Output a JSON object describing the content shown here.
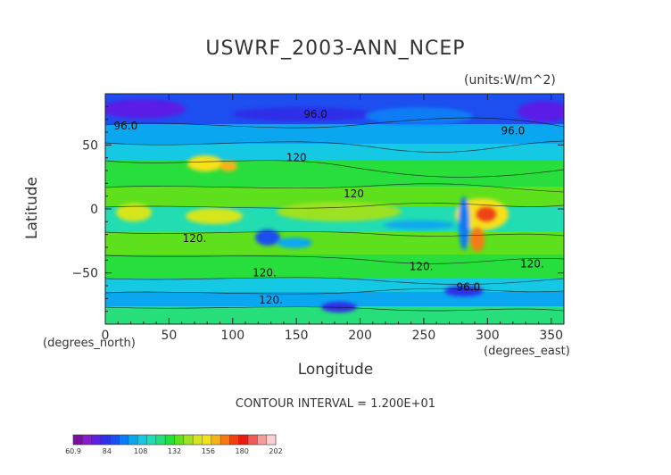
{
  "chart_data": {
    "type": "heatmap",
    "title": "USWRF_2003-ANN_NCEP",
    "units": "(units:W/m^2)",
    "xlabel": "Longitude",
    "ylabel": "Latitude",
    "x_unit_label": "(degrees_north)",
    "x_unit_label_right": "(degrees_east)",
    "xlim": [
      0,
      360
    ],
    "ylim": [
      -90,
      90
    ],
    "x_ticks": [
      0,
      50,
      100,
      150,
      200,
      250,
      300,
      350
    ],
    "y_ticks": [
      -50,
      0,
      50
    ],
    "x_tick_labels": [
      "0",
      "50",
      "100",
      "150",
      "200",
      "250",
      "300",
      "350"
    ],
    "y_tick_labels": [
      "−50",
      "0",
      "50"
    ],
    "contour_interval_text": "CONTOUR INTERVAL = 1.200E+01",
    "contour_labels": [
      {
        "text": "96.0",
        "lon": 165,
        "lat": 74
      },
      {
        "text": "96.0",
        "lon": 16,
        "lat": 65
      },
      {
        "text": "96.0",
        "lon": 320,
        "lat": 61
      },
      {
        "text": "120",
        "lon": 150,
        "lat": 40
      },
      {
        "text": "120",
        "lon": 195,
        "lat": 12
      },
      {
        "text": "120.",
        "lon": 70,
        "lat": -23
      },
      {
        "text": "120.",
        "lon": 125,
        "lat": -50
      },
      {
        "text": "120.",
        "lon": 248,
        "lat": -45
      },
      {
        "text": "120.",
        "lon": 335,
        "lat": -43
      },
      {
        "text": "96.0",
        "lon": 285,
        "lat": -61
      },
      {
        "text": "120.",
        "lon": 130,
        "lat": -71
      }
    ],
    "colorbar": {
      "min": 60.9,
      "max": 202,
      "tick_labels": [
        "60.9",
        "84",
        "108",
        "132",
        "156",
        "180",
        "202"
      ],
      "colors": [
        "#7a0fa0",
        "#8a1ad0",
        "#5a1ee6",
        "#2f2fe8",
        "#1d4ef0",
        "#0a7cf5",
        "#0aa7f0",
        "#15c8e3",
        "#22dcb2",
        "#27df7a",
        "#28de3c",
        "#5ee01c",
        "#9de224",
        "#d6e61e",
        "#f5e11a",
        "#f8b218",
        "#f57a16",
        "#ef4212",
        "#ea1a12",
        "#f25a5a",
        "#f89a9a",
        "#fcd0d0"
      ]
    }
  }
}
